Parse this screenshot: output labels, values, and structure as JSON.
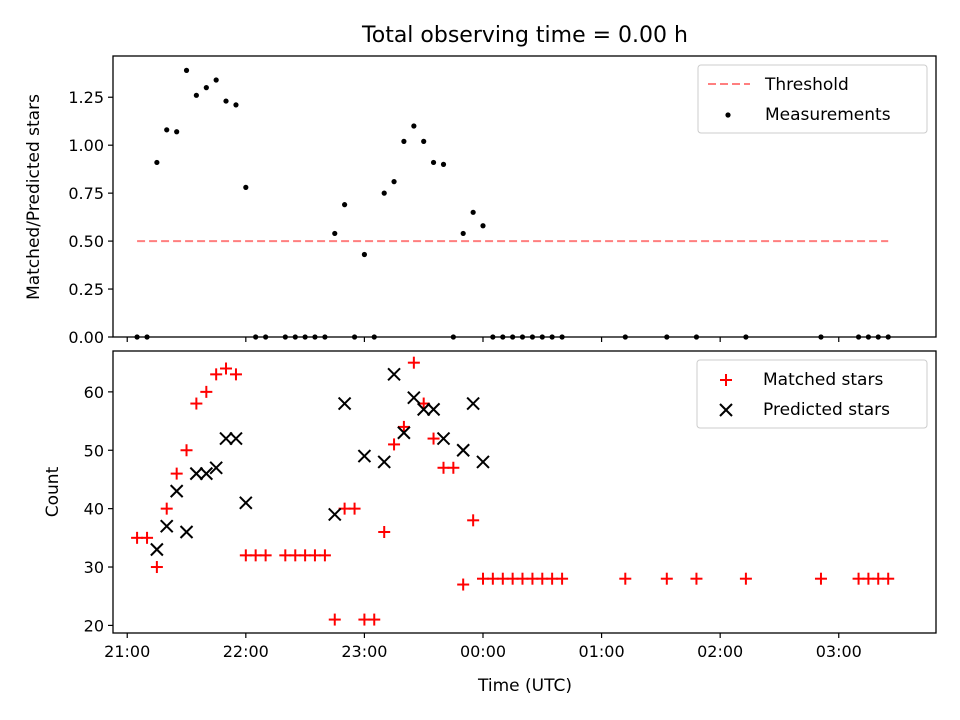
{
  "figure_title": "Total observing time = 0.00 h",
  "colors": {
    "threshold": "#ff7f7f",
    "measurement": "#000000",
    "matched": "#ff0000",
    "predicted": "#000000",
    "axes": "#000000",
    "background": "#ffffff"
  },
  "chart_data": [
    {
      "type": "scatter",
      "panel": "top",
      "title": "Total observing time = 0.00 h",
      "xlabel": "",
      "ylabel": "Matched/Predicted stars",
      "xlim": [
        20.88,
        27.82
      ],
      "ylim": [
        0.0,
        1.465
      ],
      "yticks": [
        0.0,
        0.25,
        0.5,
        0.75,
        1.0,
        1.25
      ],
      "ytick_labels": [
        "0.00",
        "0.25",
        "0.50",
        "0.75",
        "1.00",
        "1.25"
      ],
      "xticks": [
        21,
        22,
        23,
        24,
        25,
        26,
        27
      ],
      "grid": false,
      "legend_position": "top-right",
      "threshold": {
        "name": "Threshold",
        "y": 0.5,
        "x_range": [
          21.083,
          27.417
        ],
        "style": "dashed"
      },
      "series": [
        {
          "name": "Measurements",
          "marker": "dot",
          "x": [
            21.083,
            21.167,
            21.25,
            21.333,
            21.417,
            21.5,
            21.583,
            21.667,
            21.75,
            21.833,
            21.917,
            22.0,
            22.083,
            22.167,
            22.333,
            22.417,
            22.5,
            22.583,
            22.667,
            22.75,
            22.833,
            22.917,
            23.0,
            23.083,
            23.167,
            23.25,
            23.333,
            23.417,
            23.5,
            23.583,
            23.667,
            23.75,
            23.833,
            23.917,
            24.0,
            24.083,
            24.167,
            24.25,
            24.333,
            24.417,
            24.5,
            24.583,
            24.667,
            25.2,
            25.55,
            25.8,
            26.217,
            26.85,
            27.167,
            27.25,
            27.333,
            27.417
          ],
          "y": [
            0.0,
            0.0,
            0.91,
            1.08,
            1.07,
            1.39,
            1.26,
            1.3,
            1.34,
            1.23,
            1.21,
            0.78,
            0.0,
            0.0,
            0.0,
            0.0,
            0.0,
            0.0,
            0.0,
            0.54,
            0.69,
            0.0,
            0.43,
            0.0,
            0.75,
            0.81,
            1.02,
            1.1,
            1.02,
            0.91,
            0.9,
            0.0,
            0.54,
            0.65,
            0.58,
            0.0,
            0.0,
            0.0,
            0.0,
            0.0,
            0.0,
            0.0,
            0.0,
            0.0,
            0.0,
            0.0,
            0.0,
            0.0,
            0.0,
            0.0,
            0.0,
            0.0
          ]
        }
      ]
    },
    {
      "type": "scatter",
      "panel": "bottom",
      "xlabel": "Time (UTC)",
      "ylabel": "Count",
      "xlim": [
        20.88,
        27.82
      ],
      "ylim": [
        18.7,
        67.0
      ],
      "yticks": [
        20,
        30,
        40,
        50,
        60
      ],
      "ytick_labels": [
        "20",
        "30",
        "40",
        "50",
        "60"
      ],
      "xticks": [
        21,
        22,
        23,
        24,
        25,
        26,
        27
      ],
      "xtick_labels": [
        "21:00",
        "22:00",
        "23:00",
        "00:00",
        "01:00",
        "02:00",
        "03:00"
      ],
      "grid": false,
      "legend_position": "top-right",
      "series": [
        {
          "name": "Matched stars",
          "marker": "plus",
          "x": [
            21.083,
            21.167,
            21.25,
            21.333,
            21.417,
            21.5,
            21.583,
            21.667,
            21.75,
            21.833,
            21.917,
            22.0,
            22.083,
            22.167,
            22.333,
            22.417,
            22.5,
            22.583,
            22.667,
            22.75,
            22.833,
            22.917,
            23.0,
            23.083,
            23.167,
            23.25,
            23.333,
            23.417,
            23.5,
            23.583,
            23.667,
            23.75,
            23.833,
            23.917,
            24.0,
            24.083,
            24.167,
            24.25,
            24.333,
            24.417,
            24.5,
            24.583,
            24.667,
            25.2,
            25.55,
            25.8,
            26.217,
            26.85,
            27.167,
            27.25,
            27.333,
            27.417
          ],
          "y": [
            35,
            35,
            30,
            40,
            46,
            50,
            58,
            60,
            63,
            64,
            63,
            32,
            32,
            32,
            32,
            32,
            32,
            32,
            32,
            21,
            40,
            40,
            21,
            21,
            36,
            51,
            54,
            65,
            58,
            52,
            47,
            47,
            27,
            38,
            28,
            28,
            28,
            28,
            28,
            28,
            28,
            28,
            28,
            28,
            28,
            28,
            28,
            28,
            28,
            28,
            28,
            28
          ]
        },
        {
          "name": "Predicted stars",
          "marker": "x",
          "x": [
            21.25,
            21.333,
            21.417,
            21.5,
            21.583,
            21.667,
            21.75,
            21.833,
            21.917,
            22.0,
            22.75,
            22.833,
            23.0,
            23.167,
            23.25,
            23.333,
            23.417,
            23.5,
            23.583,
            23.667,
            23.833,
            23.917,
            24.0
          ],
          "y": [
            33,
            37,
            43,
            36,
            46,
            46,
            47,
            52,
            52,
            41,
            39,
            58,
            49,
            48,
            63,
            53,
            59,
            57,
            57,
            52,
            50,
            58,
            48
          ]
        }
      ]
    }
  ]
}
